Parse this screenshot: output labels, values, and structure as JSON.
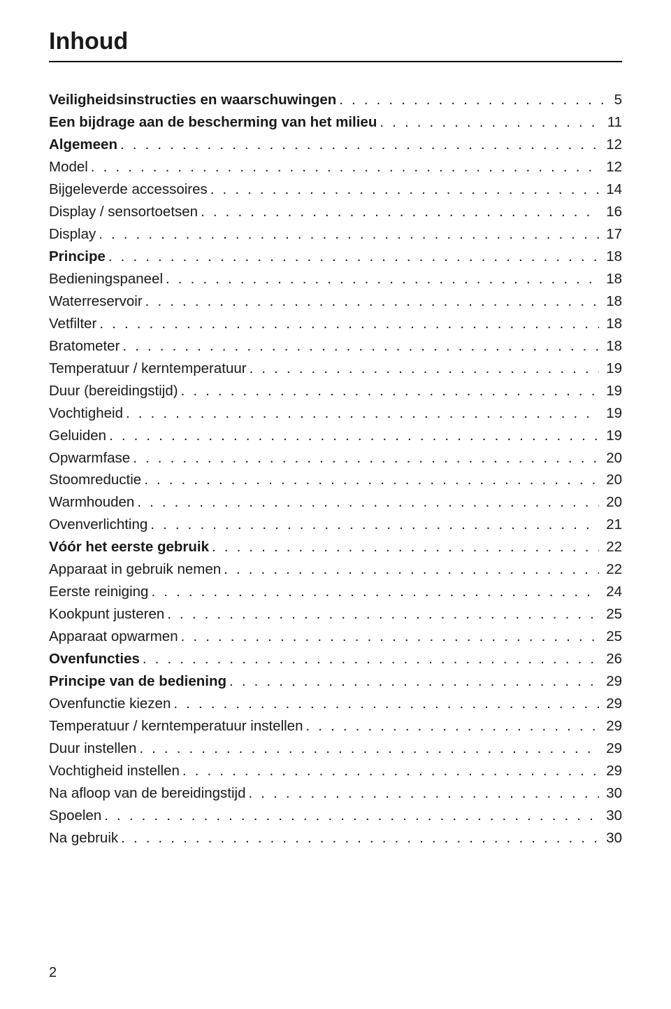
{
  "page_title": "Inhoud",
  "page_number": "2",
  "toc": [
    {
      "label": "Veiligheidsinstructies en waarschuwingen",
      "page": "5",
      "bold": true
    },
    {
      "label": "Een bijdrage aan de bescherming van het milieu",
      "page": "11",
      "bold": true
    },
    {
      "label": "Algemeen",
      "page": "12",
      "bold": true
    },
    {
      "label": "Model",
      "page": "12",
      "bold": false
    },
    {
      "label": "Bijgeleverde accessoires",
      "page": "14",
      "bold": false
    },
    {
      "label": "Display / sensortoetsen",
      "page": "16",
      "bold": false
    },
    {
      "label": "Display",
      "page": "17",
      "bold": false
    },
    {
      "label": "Principe",
      "page": "18",
      "bold": true
    },
    {
      "label": "Bedieningspaneel",
      "page": "18",
      "bold": false
    },
    {
      "label": "Waterreservoir",
      "page": "18",
      "bold": false
    },
    {
      "label": "Vetfilter",
      "page": "18",
      "bold": false
    },
    {
      "label": "Bratometer",
      "page": "18",
      "bold": false
    },
    {
      "label": "Temperatuur / kerntemperatuur",
      "page": "19",
      "bold": false
    },
    {
      "label": "Duur (bereidingstijd)",
      "page": "19",
      "bold": false
    },
    {
      "label": "Vochtigheid",
      "page": "19",
      "bold": false
    },
    {
      "label": "Geluiden",
      "page": "19",
      "bold": false
    },
    {
      "label": "Opwarmfase",
      "page": "20",
      "bold": false
    },
    {
      "label": "Stoomreductie",
      "page": "20",
      "bold": false
    },
    {
      "label": "Warmhouden",
      "page": "20",
      "bold": false
    },
    {
      "label": "Ovenverlichting",
      "page": "21",
      "bold": false
    },
    {
      "label": "Vóór het eerste gebruik",
      "page": "22",
      "bold": true
    },
    {
      "label": "Apparaat in gebruik nemen",
      "page": "22",
      "bold": false
    },
    {
      "label": "Eerste reiniging",
      "page": "24",
      "bold": false
    },
    {
      "label": "Kookpunt justeren",
      "page": "25",
      "bold": false
    },
    {
      "label": "Apparaat opwarmen",
      "page": "25",
      "bold": false
    },
    {
      "label": "Ovenfuncties",
      "page": "26",
      "bold": true
    },
    {
      "label": "Principe van de bediening",
      "page": "29",
      "bold": true
    },
    {
      "label": "Ovenfunctie kiezen",
      "page": "29",
      "bold": false
    },
    {
      "label": "Temperatuur / kerntemperatuur instellen",
      "page": "29",
      "bold": false
    },
    {
      "label": "Duur instellen",
      "page": "29",
      "bold": false
    },
    {
      "label": "Vochtigheid instellen",
      "page": "29",
      "bold": false
    },
    {
      "label": "Na afloop van de bereidingstijd",
      "page": "30",
      "bold": false
    },
    {
      "label": "Spoelen",
      "page": "30",
      "bold": false
    },
    {
      "label": "Na gebruik",
      "page": "30",
      "bold": false
    }
  ]
}
